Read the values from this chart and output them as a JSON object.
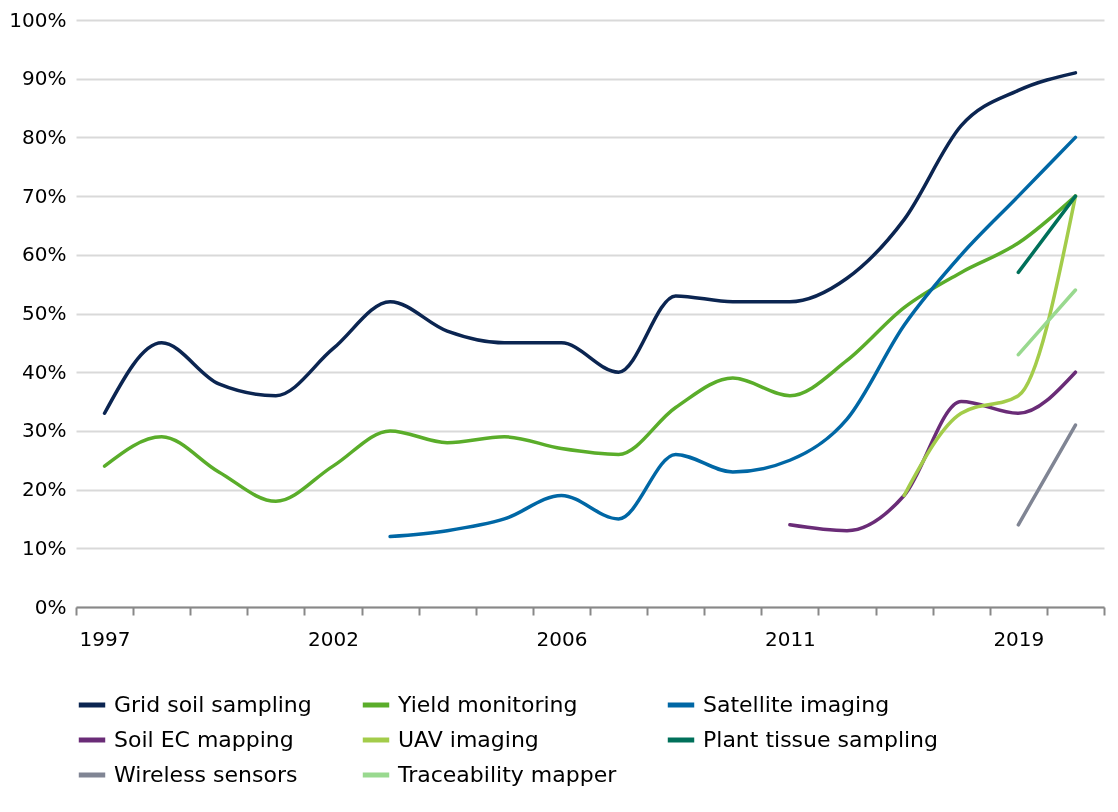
{
  "chart_data": {
    "type": "line",
    "categories": [
      "1997",
      null,
      null,
      null,
      "2002",
      null,
      null,
      null,
      "2006",
      null,
      null,
      null,
      "2011",
      null,
      null,
      null,
      "2019",
      null
    ],
    "series": [
      {
        "name": "Grid soil sampling",
        "color": "#0b2551",
        "values": [
          33,
          45,
          38,
          36,
          44,
          52,
          47,
          45,
          45,
          40,
          53,
          52,
          52,
          56,
          66,
          82,
          88,
          91
        ]
      },
      {
        "name": "Yield monitoring",
        "color": "#5aad2a",
        "values": [
          24,
          29,
          23,
          18,
          24,
          30,
          28,
          29,
          27,
          26,
          34,
          39,
          36,
          42,
          51,
          57,
          62,
          70
        ]
      },
      {
        "name": "Satellite imaging",
        "color": "#0067a5",
        "values": [
          null,
          null,
          null,
          null,
          null,
          12,
          13,
          15,
          19,
          15,
          26,
          23,
          25,
          32,
          48,
          60,
          70,
          80
        ]
      },
      {
        "name": "Soil EC mapping",
        "color": "#6a2c77",
        "values": [
          null,
          null,
          null,
          null,
          null,
          null,
          null,
          null,
          null,
          null,
          null,
          null,
          14,
          13,
          19,
          35,
          33,
          40
        ]
      },
      {
        "name": "UAV imaging",
        "color": "#a3cc4a",
        "values": [
          null,
          null,
          null,
          null,
          null,
          null,
          null,
          null,
          null,
          null,
          null,
          null,
          null,
          null,
          19,
          33,
          36,
          70
        ]
      },
      {
        "name": "Plant tissue sampling",
        "color": "#00705a",
        "values": [
          null,
          null,
          null,
          null,
          null,
          null,
          null,
          null,
          null,
          null,
          null,
          null,
          null,
          null,
          null,
          null,
          57,
          70
        ]
      },
      {
        "name": "Wireless sensors",
        "color": "#808594",
        "values": [
          null,
          null,
          null,
          null,
          null,
          null,
          null,
          null,
          null,
          null,
          null,
          null,
          null,
          null,
          null,
          null,
          14,
          31
        ]
      },
      {
        "name": "Traceability mapper",
        "color": "#99d98f",
        "values": [
          null,
          null,
          null,
          null,
          null,
          null,
          null,
          null,
          null,
          null,
          null,
          null,
          null,
          null,
          null,
          null,
          43,
          54
        ]
      }
    ],
    "ylim": [
      0,
      100
    ],
    "yticks": [
      {
        "value": 0,
        "label": "0%"
      },
      {
        "value": 10,
        "label": "10%"
      },
      {
        "value": 20,
        "label": "20%"
      },
      {
        "value": 30,
        "label": "30%"
      },
      {
        "value": 40,
        "label": "40%"
      },
      {
        "value": 50,
        "label": "50%"
      },
      {
        "value": 60,
        "label": "60%"
      },
      {
        "value": 70,
        "label": "70%"
      },
      {
        "value": 80,
        "label": "80%"
      },
      {
        "value": 90,
        "label": "90%"
      },
      {
        "value": 100,
        "label": "100%"
      }
    ],
    "grid": "y",
    "legend": "bottom",
    "marker": "none",
    "line_style": "solid"
  }
}
